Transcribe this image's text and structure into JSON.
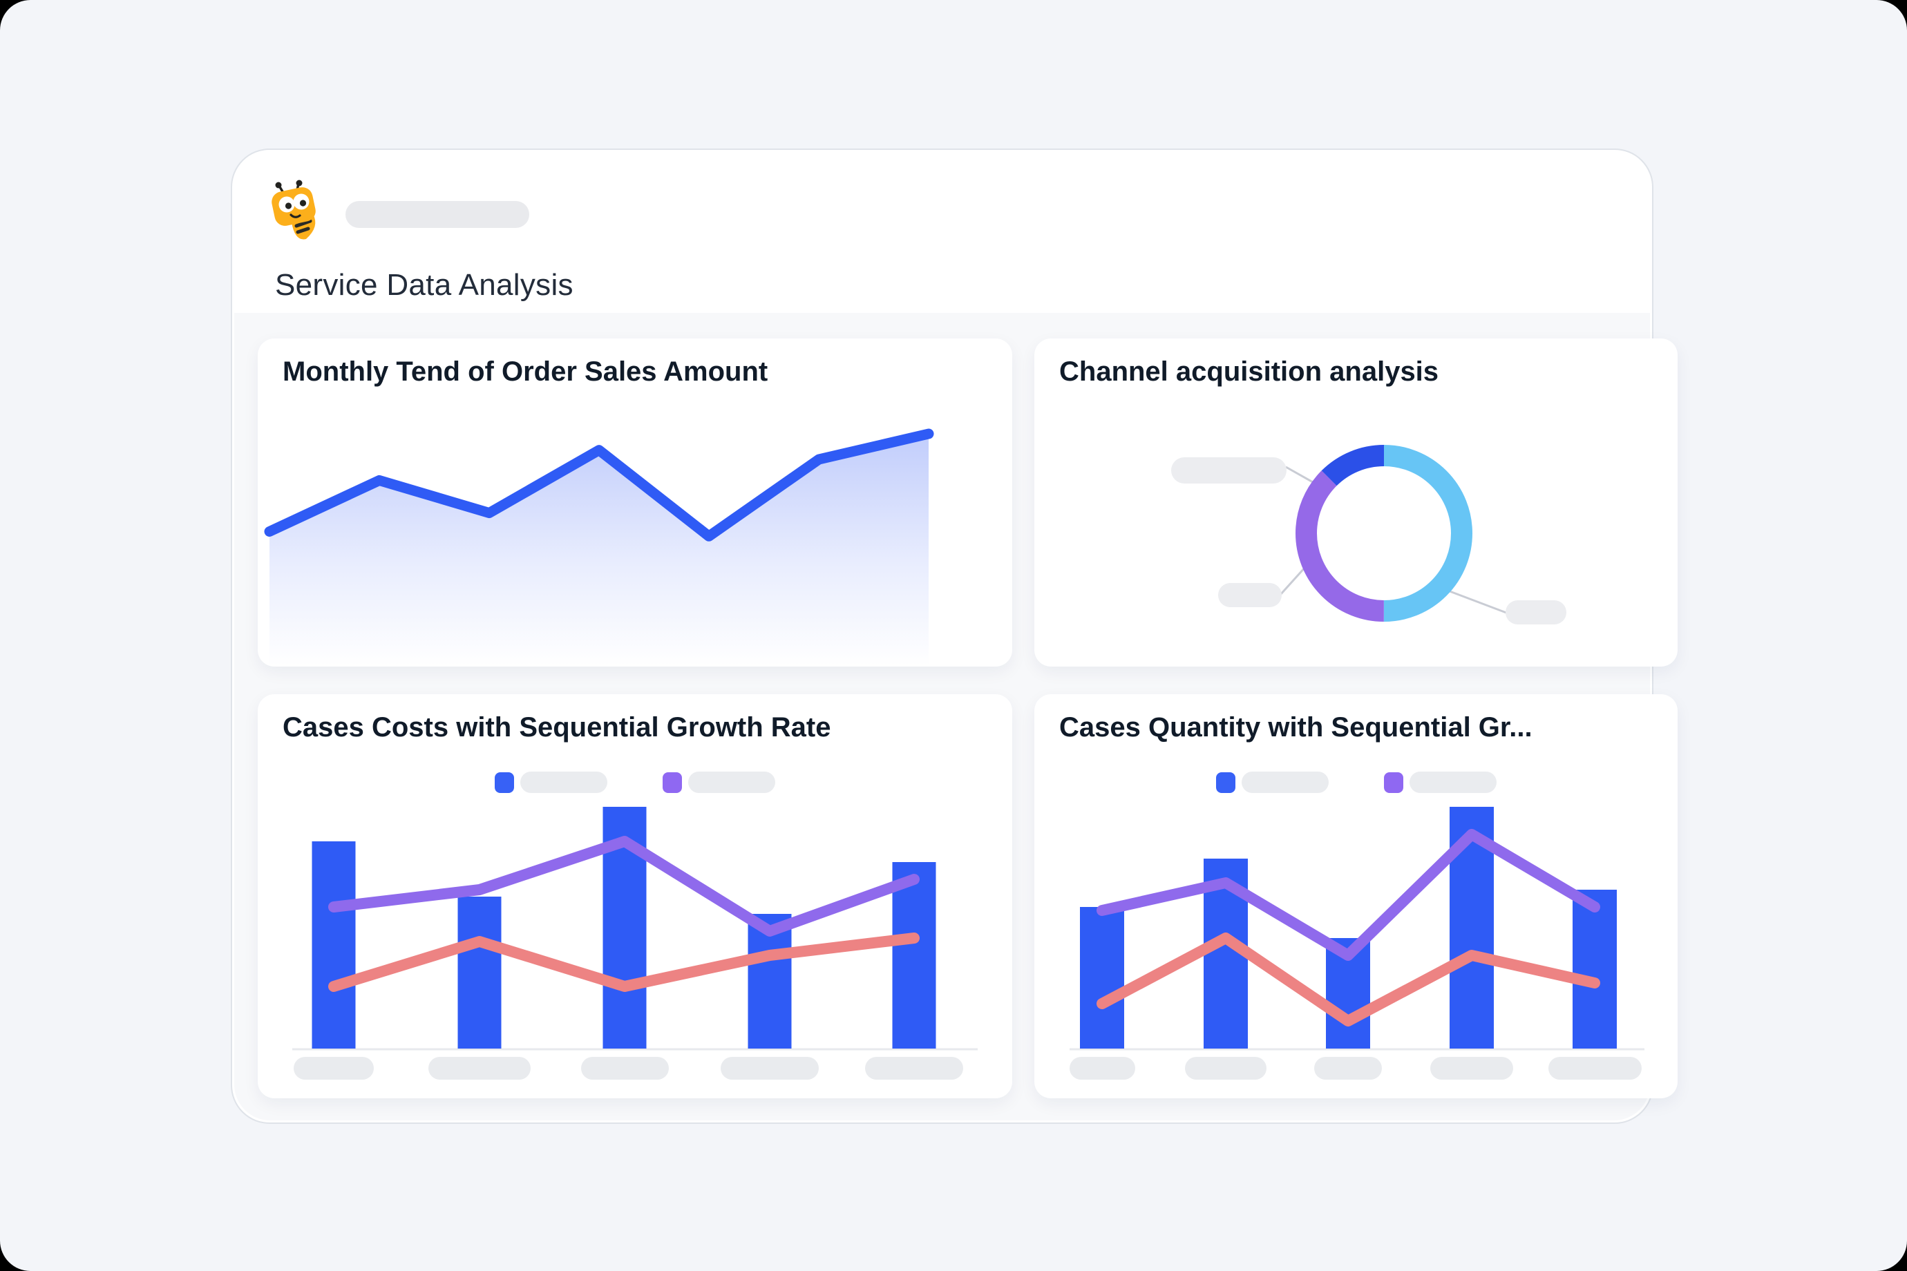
{
  "header": {
    "title": "Service Data Analysis",
    "avatar": "bee-mascot",
    "sender_name_placeholder": ""
  },
  "cards": [
    {
      "title": "Monthly Tend of Order Sales Amount"
    },
    {
      "title": "Channel acquisition analysis"
    },
    {
      "title": "Cases Costs with Sequential Growth Rate"
    },
    {
      "title": "Cases Quantity with Sequential Gr..."
    }
  ],
  "colors": {
    "primary_blue": "#2F5BF5",
    "line_purple": "#8F6AEC",
    "line_salmon": "#ED8383",
    "donut_light_blue": "#67C5F5",
    "donut_purple": "#9569E8",
    "donut_blue": "#2B50E8",
    "placeholder_gray": "#EAECEF",
    "axis_gray": "#E7E9ED"
  },
  "chart_data": [
    {
      "type": "area",
      "title": "Monthly Tend of Order Sales Amount",
      "x": [
        1,
        2,
        3,
        4,
        5,
        6,
        7
      ],
      "values": [
        58,
        80,
        66,
        93,
        56,
        89,
        100
      ],
      "ylim": [
        0,
        110
      ],
      "xlabel": "",
      "ylabel": "",
      "note": "decorative trend line; no axis tick labels shown",
      "line_color": "#2F5BF5"
    },
    {
      "type": "pie",
      "title": "Channel acquisition analysis",
      "donut": true,
      "slices": [
        {
          "name": "light-blue-segment",
          "value": 50,
          "color": "#67C5F5"
        },
        {
          "name": "purple-segment",
          "value": 37.5,
          "color": "#9569E8"
        },
        {
          "name": "blue-segment",
          "value": 12.5,
          "color": "#2B50E8"
        }
      ],
      "labels": "three placeholder pills with connector lines, no text shown"
    },
    {
      "type": "bar",
      "title": "Cases Costs with Sequential Growth Rate",
      "categories": [
        "",
        "",
        "",
        "",
        ""
      ],
      "series": [
        {
          "name": "bars-blue",
          "kind": "bar",
          "color": "#2F5BF5",
          "values": [
            60,
            44,
            70,
            39,
            54
          ]
        },
        {
          "name": "line-purple",
          "kind": "line",
          "color": "#8F6AEC",
          "values": [
            41,
            46,
            60,
            34,
            49
          ]
        },
        {
          "name": "line-salmon",
          "kind": "line",
          "color": "#ED8383",
          "values": [
            18,
            31,
            18,
            27,
            32
          ]
        }
      ],
      "legend": [
        "placeholder-blue",
        "placeholder-purple"
      ],
      "ylim": [
        0,
        80
      ],
      "note": "x labels and legend labels are placeholder pills"
    },
    {
      "type": "bar",
      "title": "Cases Quantity with Sequential Gr...",
      "categories": [
        "",
        "",
        "",
        "",
        ""
      ],
      "series": [
        {
          "name": "bars-blue",
          "kind": "bar",
          "color": "#2F5BF5",
          "values": [
            41,
            55,
            32,
            70,
            46
          ]
        },
        {
          "name": "line-purple",
          "kind": "line",
          "color": "#8F6AEC",
          "values": [
            40,
            48,
            27,
            62,
            41
          ]
        },
        {
          "name": "line-salmon",
          "kind": "line",
          "color": "#ED8383",
          "values": [
            13,
            32,
            8,
            27,
            19
          ]
        }
      ],
      "legend": [
        "placeholder-blue",
        "placeholder-purple"
      ],
      "ylim": [
        0,
        80
      ],
      "note": "x labels and legend labels are placeholder pills"
    }
  ]
}
